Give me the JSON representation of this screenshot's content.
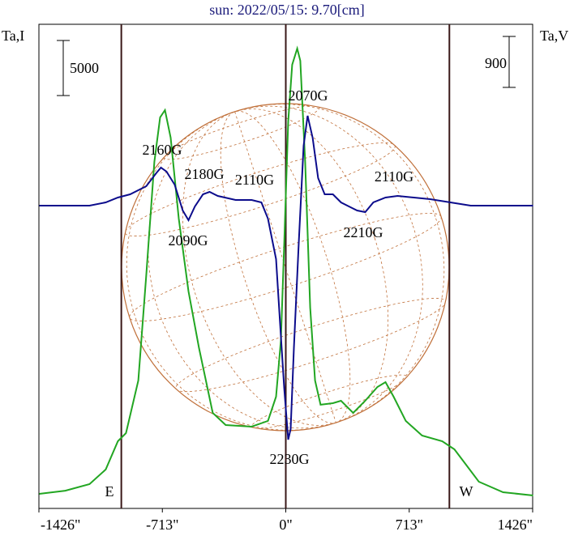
{
  "chart_data": {
    "type": "line",
    "title": "sun: 2022/05/15: 9.70[cm]",
    "y_label": "Ta,I",
    "y2_label": "Ta,V",
    "xlim": [
      -1426,
      1426
    ],
    "xticks": [
      {
        "value": -1426,
        "label": "-1426\""
      },
      {
        "value": -713,
        "label": "-713\""
      },
      {
        "value": 0,
        "label": "0\""
      },
      {
        "value": 713,
        "label": "713\""
      },
      {
        "value": 1426,
        "label": "1426\""
      }
    ],
    "ylim": [
      -1323,
      42630
    ],
    "y2lim": [
      -5348,
      3203
    ],
    "scale_bars": [
      {
        "value": 5000,
        "axis": "y"
      },
      {
        "value": 900,
        "axis": "y2"
      }
    ],
    "vlines": [
      -950,
      0,
      945
    ],
    "limb_labels": [
      "E",
      "W"
    ],
    "annotations": [
      "2070G",
      "2160G",
      "2180G",
      "2110G",
      "2110G",
      "2090G",
      "2210G",
      "2230G"
    ],
    "series": [
      {
        "name": "I",
        "color": "#22a622",
        "axis": "y",
        "x": [
          -1424,
          -1274,
          -1134,
          -1040,
          -970,
          -923,
          -852,
          -806,
          -759,
          -726,
          -698,
          -665,
          -618,
          -562,
          -501,
          -422,
          -347,
          -197,
          -103,
          -56,
          -28,
          -9,
          14,
          37,
          66,
          84,
          112,
          141,
          169,
          201,
          272,
          319,
          389,
          459,
          529,
          576,
          623,
          693,
          787,
          904,
          974,
          1045,
          1115,
          1255,
          1429
        ],
        "values": [
          0,
          290,
          880,
          2210,
          4780,
          5510,
          10290,
          19850,
          30140,
          34180,
          34840,
          32340,
          24990,
          18380,
          13230,
          7350,
          6250,
          6100,
          6620,
          8820,
          13970,
          22790,
          33810,
          38960,
          40430,
          39320,
          30140,
          16910,
          10290,
          8090,
          8230,
          8450,
          7350,
          8450,
          9700,
          10140,
          8820,
          6620,
          5290,
          4780,
          4040,
          2570,
          1100,
          150,
          -150
        ]
      },
      {
        "name": "V",
        "color": "#0c0c8c",
        "axis": "y2",
        "x": [
          -1424,
          -1134,
          -1040,
          -970,
          -899,
          -806,
          -749,
          -721,
          -689,
          -642,
          -595,
          -562,
          -525,
          -478,
          -440,
          -393,
          -290,
          -197,
          -141,
          -103,
          -56,
          -33,
          -9,
          14,
          28,
          47,
          75,
          103,
          126,
          155,
          187,
          225,
          272,
          319,
          365,
          412,
          459,
          506,
          576,
          646,
          740,
          834,
          951,
          1068,
          1429
        ],
        "values": [
          0,
          0,
          57,
          143,
          200,
          343,
          572,
          672,
          601,
          372,
          -86,
          -257,
          -14,
          200,
          243,
          172,
          100,
          100,
          57,
          -229,
          -944,
          -2088,
          -3232,
          -4133,
          -3947,
          -2517,
          -658,
          1058,
          1587,
          1201,
          486,
          200,
          200,
          57,
          -14,
          -86,
          -114,
          57,
          143,
          172,
          143,
          114,
          57,
          0,
          0
        ]
      }
    ]
  }
}
